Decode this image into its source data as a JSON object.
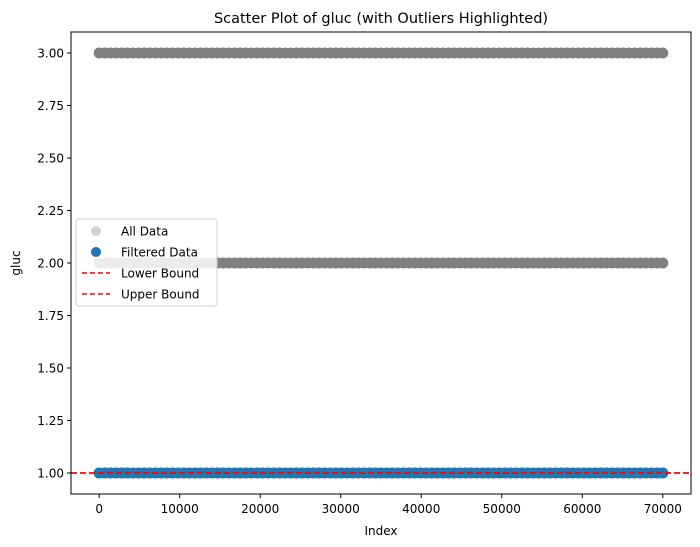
{
  "chart_data": {
    "type": "scatter",
    "title": "Scatter Plot of gluc (with Outliers Highlighted)",
    "xlabel": "Index",
    "ylabel": "gluc",
    "xlim": [
      -3500,
      73500
    ],
    "ylim": [
      0.9,
      3.1
    ],
    "xticks": [
      0,
      10000,
      20000,
      30000,
      40000,
      50000,
      60000,
      70000
    ],
    "yticks": [
      1.0,
      1.25,
      1.5,
      1.75,
      2.0,
      2.25,
      2.5,
      2.75,
      3.0
    ],
    "ytick_labels": [
      "1.00",
      "1.25",
      "1.50",
      "1.75",
      "2.00",
      "2.25",
      "2.50",
      "2.75",
      "3.00"
    ],
    "grid": false,
    "legend_position": "center-left",
    "series": [
      {
        "name": "All Data",
        "color": "#808080",
        "legend_color": "#d3d3d3",
        "marker": "circle",
        "x_range": [
          0,
          69999
        ],
        "y_levels": [
          1,
          2,
          3
        ]
      },
      {
        "name": "Filtered Data",
        "color": "#1f77b4",
        "marker": "circle",
        "x_range": [
          0,
          69999
        ],
        "y_levels": [
          1
        ]
      }
    ],
    "reference_lines": [
      {
        "name": "Lower Bound",
        "y": 1.0,
        "color": "#ff0000",
        "style": "dashed"
      },
      {
        "name": "Upper Bound",
        "y": 1.0,
        "color": "#ff0000",
        "style": "dashed"
      }
    ]
  }
}
